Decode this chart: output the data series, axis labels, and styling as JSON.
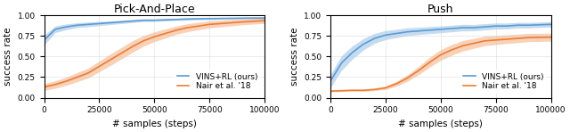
{
  "pick_place": {
    "title": "Pick-And-Place",
    "vins_mean": [
      0.7,
      0.83,
      0.86,
      0.88,
      0.89,
      0.9,
      0.91,
      0.92,
      0.93,
      0.94,
      0.94,
      0.945,
      0.95,
      0.955,
      0.958,
      0.96,
      0.962,
      0.964,
      0.966,
      0.968
    ],
    "vins_std": [
      0.06,
      0.04,
      0.035,
      0.03,
      0.028,
      0.025,
      0.022,
      0.02,
      0.018,
      0.016,
      0.015,
      0.014,
      0.013,
      0.013,
      0.012,
      0.012,
      0.011,
      0.011,
      0.01,
      0.01
    ],
    "nair_mean": [
      0.13,
      0.16,
      0.2,
      0.25,
      0.3,
      0.38,
      0.46,
      0.54,
      0.62,
      0.69,
      0.74,
      0.78,
      0.82,
      0.85,
      0.87,
      0.89,
      0.9,
      0.91,
      0.92,
      0.935
    ],
    "nair_std": [
      0.04,
      0.045,
      0.05,
      0.055,
      0.06,
      0.065,
      0.07,
      0.07,
      0.07,
      0.065,
      0.06,
      0.055,
      0.05,
      0.048,
      0.045,
      0.042,
      0.04,
      0.038,
      0.035,
      0.032
    ]
  },
  "push": {
    "title": "Push",
    "vins_mean": [
      0.2,
      0.42,
      0.55,
      0.65,
      0.72,
      0.76,
      0.78,
      0.8,
      0.81,
      0.82,
      0.83,
      0.84,
      0.85,
      0.85,
      0.86,
      0.87,
      0.87,
      0.88,
      0.88,
      0.89
    ],
    "vins_std": [
      0.08,
      0.09,
      0.08,
      0.07,
      0.06,
      0.055,
      0.05,
      0.048,
      0.045,
      0.043,
      0.042,
      0.04,
      0.04,
      0.039,
      0.038,
      0.037,
      0.036,
      0.035,
      0.034,
      0.033
    ],
    "nair_mean": [
      0.08,
      0.085,
      0.09,
      0.09,
      0.1,
      0.12,
      0.17,
      0.24,
      0.33,
      0.43,
      0.52,
      0.58,
      0.63,
      0.66,
      0.69,
      0.7,
      0.71,
      0.72,
      0.73,
      0.735
    ],
    "nair_std": [
      0.01,
      0.01,
      0.01,
      0.012,
      0.015,
      0.02,
      0.03,
      0.04,
      0.05,
      0.06,
      0.065,
      0.065,
      0.063,
      0.06,
      0.058,
      0.055,
      0.053,
      0.052,
      0.05,
      0.048
    ]
  },
  "x_steps": [
    0,
    5000,
    10000,
    15000,
    20000,
    25000,
    30000,
    35000,
    40000,
    45000,
    50000,
    55000,
    60000,
    65000,
    70000,
    75000,
    80000,
    85000,
    90000,
    100000
  ],
  "vins_color": "#5b9bd5",
  "nair_color": "#ed7d31",
  "ylabel": "success rate",
  "xlabel": "# samples (steps)",
  "ylim": [
    0.0,
    1.0
  ],
  "yticks": [
    0.0,
    0.25,
    0.5,
    0.75,
    1.0
  ],
  "xticks": [
    0,
    25000,
    50000,
    75000,
    100000
  ],
  "xtick_labels": [
    "0",
    "25000",
    "50000",
    "75000",
    "100000"
  ],
  "legend_vins": "VINS+RL (ours)",
  "legend_nair": "Nair et al. '18",
  "title_fontsize": 9,
  "label_fontsize": 7.5,
  "tick_fontsize": 6.5,
  "legend_fontsize": 6.5
}
